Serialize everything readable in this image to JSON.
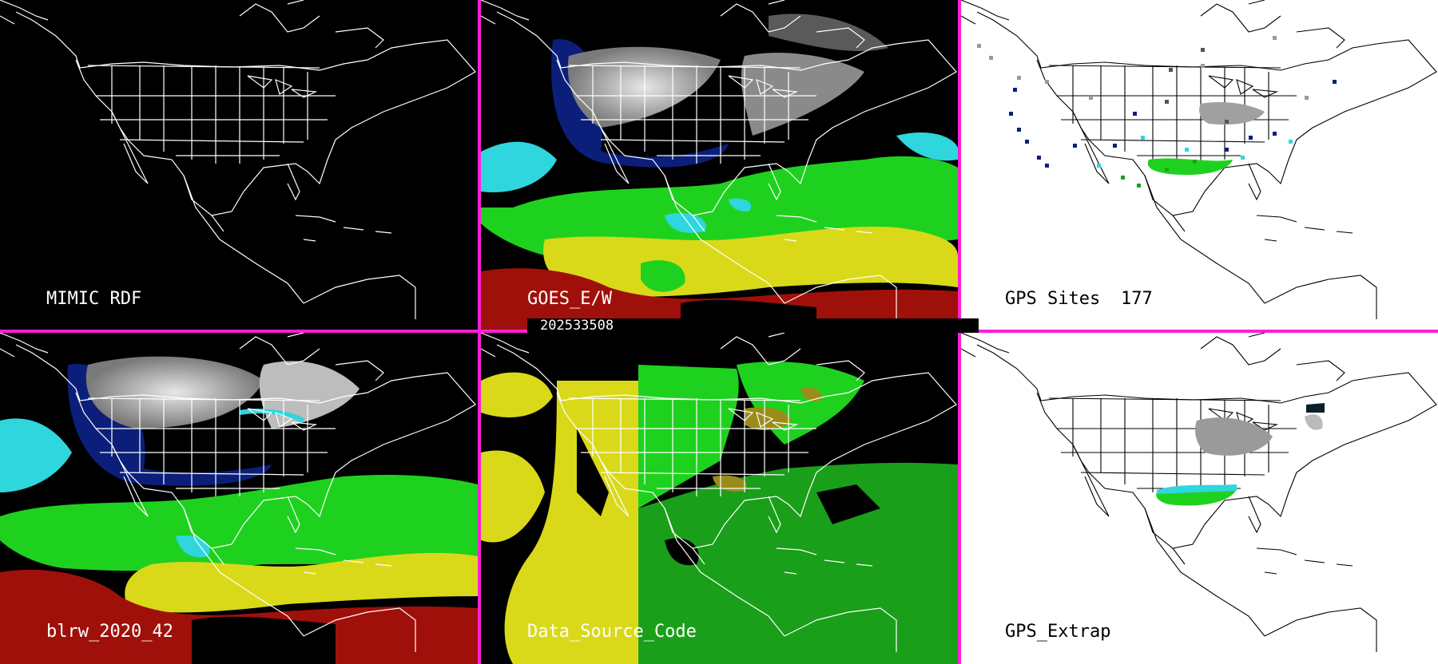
{
  "timestamp": "202533508",
  "colors": {
    "divider": "#ff1fd6",
    "dark_bg": "#000000",
    "light_bg": "#ffffff",
    "map_lines_dark": "#ffffff",
    "map_lines_light": "#000000"
  },
  "panels": [
    {
      "id": "mimic",
      "label": "MIMIC RDF",
      "background": "dark"
    },
    {
      "id": "goes",
      "label": "GOES_E/W",
      "background": "dark"
    },
    {
      "id": "gps-sites",
      "label": "GPS Sites",
      "count": "177",
      "background": "light"
    },
    {
      "id": "blrw",
      "label": "blrw_2020_42",
      "background": "dark"
    },
    {
      "id": "data-source",
      "label": "Data_Source_Code",
      "background": "dark"
    },
    {
      "id": "gps-extrap",
      "label": "GPS_Extrap",
      "background": "light"
    }
  ],
  "icons": {
    "basemap": "north-america-outline-map",
    "overlay": "precipitable-water-field"
  }
}
